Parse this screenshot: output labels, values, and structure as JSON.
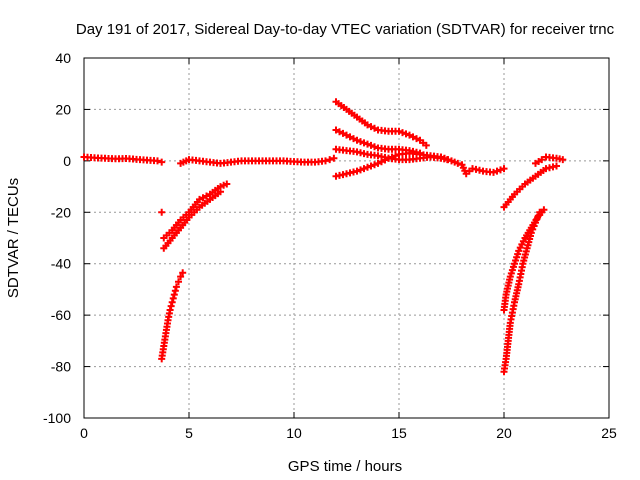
{
  "chart_data": {
    "type": "scatter",
    "title": "Day 191 of 2017, Sidereal Day-to-day VTEC variation (SDTVAR) for receiver trnc",
    "xlabel": "GPS time / hours",
    "ylabel": "SDTVAR / TECUs",
    "xlim": [
      0,
      25
    ],
    "ylim": [
      -100,
      40
    ],
    "xticks": [
      "0",
      "5",
      "10",
      "15",
      "20",
      "25"
    ],
    "yticks": [
      "-100",
      "-80",
      "-60",
      "-40",
      "-20",
      "0",
      "20",
      "40"
    ],
    "grid": true,
    "marker": "plus",
    "color": "#ff0000",
    "series": [
      {
        "points": [
          [
            0.0,
            1.5
          ],
          [
            0.5,
            1.2
          ],
          [
            1.0,
            1.0
          ],
          [
            1.5,
            0.8
          ],
          [
            2.0,
            0.9
          ],
          [
            2.5,
            0.6
          ],
          [
            3.0,
            0.3
          ],
          [
            3.5,
            0.0
          ],
          [
            3.7,
            -0.5
          ],
          [
            4.6,
            -1.0
          ],
          [
            5.0,
            0.5
          ],
          [
            5.5,
            0.0
          ],
          [
            6.0,
            -0.5
          ],
          [
            6.5,
            -1.0
          ],
          [
            7.0,
            -0.5
          ],
          [
            7.5,
            0.0
          ],
          [
            8.0,
            0.0
          ],
          [
            8.5,
            0.0
          ],
          [
            9.0,
            0.0
          ],
          [
            9.5,
            0.0
          ],
          [
            10.0,
            -0.3
          ],
          [
            10.5,
            -0.5
          ],
          [
            11.0,
            -0.5
          ],
          [
            11.5,
            0.0
          ],
          [
            11.9,
            1.0
          ],
          [
            12.0,
            23.0
          ],
          [
            12.5,
            20.0
          ],
          [
            13.0,
            17.0
          ],
          [
            13.5,
            14.0
          ],
          [
            14.0,
            12.0
          ],
          [
            14.5,
            11.5
          ],
          [
            15.0,
            11.5
          ],
          [
            15.5,
            10.0
          ],
          [
            16.0,
            8.0
          ],
          [
            16.3,
            6.0
          ],
          [
            12.0,
            12.0
          ],
          [
            12.5,
            10.0
          ],
          [
            13.0,
            8.0
          ],
          [
            13.5,
            6.5
          ],
          [
            14.0,
            5.0
          ],
          [
            14.5,
            4.5
          ],
          [
            15.0,
            4.5
          ],
          [
            15.5,
            4.0
          ],
          [
            16.0,
            3.0
          ],
          [
            12.0,
            4.5
          ],
          [
            12.5,
            4.0
          ],
          [
            13.0,
            3.5
          ],
          [
            13.5,
            2.5
          ],
          [
            14.0,
            2.0
          ],
          [
            14.5,
            1.0
          ],
          [
            15.0,
            0.5
          ],
          [
            15.5,
            0.5
          ],
          [
            16.0,
            1.0
          ],
          [
            16.5,
            1.5
          ],
          [
            17.0,
            1.0
          ],
          [
            17.3,
            0.5
          ],
          [
            12.0,
            -6.0
          ],
          [
            12.5,
            -5.0
          ],
          [
            13.0,
            -4.0
          ],
          [
            13.5,
            -2.5
          ],
          [
            14.0,
            -1.0
          ],
          [
            14.5,
            1.0
          ],
          [
            15.0,
            2.5
          ],
          [
            15.5,
            3.0
          ],
          [
            16.0,
            2.5
          ],
          [
            16.5,
            2.0
          ],
          [
            17.0,
            1.5
          ],
          [
            17.5,
            0.0
          ],
          [
            17.8,
            -1.0
          ],
          [
            18.0,
            -1.5
          ],
          [
            18.2,
            -5.0
          ],
          [
            18.5,
            -3.0
          ],
          [
            19.0,
            -4.0
          ],
          [
            19.5,
            -4.5
          ],
          [
            20.0,
            -3.0
          ],
          [
            3.7,
            -20.0
          ],
          [
            3.8,
            -30.0
          ],
          [
            4.2,
            -27.0
          ],
          [
            4.6,
            -23.0
          ],
          [
            5.0,
            -20.0
          ],
          [
            5.5,
            -15.0
          ],
          [
            6.0,
            -13.0
          ],
          [
            6.5,
            -10.0
          ],
          [
            6.8,
            -9.0
          ],
          [
            3.8,
            -34.0
          ],
          [
            4.2,
            -30.0
          ],
          [
            4.6,
            -26.0
          ],
          [
            5.0,
            -22.0
          ],
          [
            5.5,
            -18.0
          ],
          [
            6.0,
            -15.0
          ],
          [
            6.5,
            -12.0
          ],
          [
            3.7,
            -77.0
          ],
          [
            3.8,
            -72.0
          ],
          [
            3.9,
            -67.0
          ],
          [
            4.0,
            -62.0
          ],
          [
            4.1,
            -58.0
          ],
          [
            4.2,
            -55.0
          ],
          [
            4.3,
            -52.0
          ],
          [
            4.4,
            -49.0
          ],
          [
            4.5,
            -47.0
          ],
          [
            4.6,
            -45.0
          ],
          [
            4.7,
            -43.5
          ],
          [
            20.0,
            -18.0
          ],
          [
            20.5,
            -13.0
          ],
          [
            21.0,
            -9.0
          ],
          [
            21.5,
            -6.0
          ],
          [
            22.0,
            -3.0
          ],
          [
            22.5,
            -2.0
          ],
          [
            21.5,
            -1.0
          ],
          [
            21.8,
            0.5
          ],
          [
            22.0,
            1.5
          ],
          [
            22.5,
            1.0
          ],
          [
            22.8,
            0.5
          ],
          [
            20.0,
            -82.0
          ],
          [
            20.1,
            -77.0
          ],
          [
            20.2,
            -70.0
          ],
          [
            20.3,
            -63.0
          ],
          [
            20.5,
            -55.0
          ],
          [
            20.7,
            -48.0
          ],
          [
            20.9,
            -40.0
          ],
          [
            21.1,
            -34.0
          ],
          [
            21.3,
            -28.0
          ],
          [
            21.5,
            -24.0
          ],
          [
            21.7,
            -20.0
          ],
          [
            20.0,
            -58.0
          ],
          [
            20.1,
            -52.0
          ],
          [
            20.3,
            -45.0
          ],
          [
            20.5,
            -40.0
          ],
          [
            20.7,
            -35.0
          ],
          [
            21.0,
            -30.0
          ],
          [
            21.3,
            -26.0
          ],
          [
            21.6,
            -22.0
          ],
          [
            21.9,
            -19.0
          ]
        ]
      }
    ]
  }
}
